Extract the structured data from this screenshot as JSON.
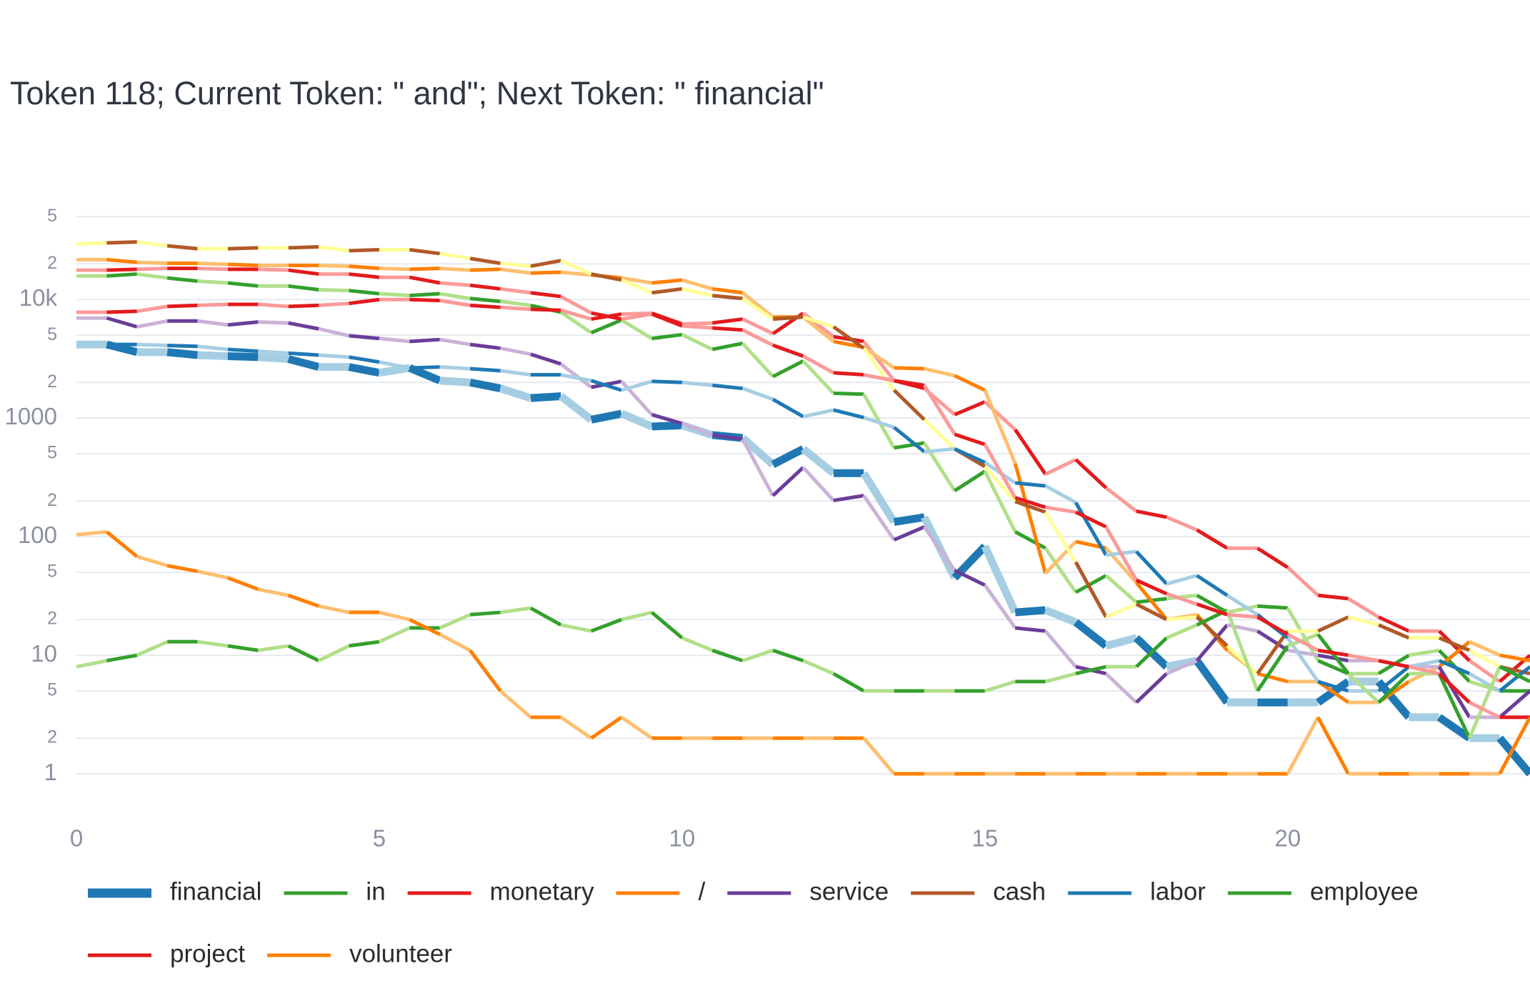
{
  "chart_data": {
    "type": "line",
    "title": "Token 118; Current Token: \" and\"; Next Token: \" financial\"",
    "log_y": true,
    "grid": true,
    "x": [
      0,
      0.5,
      1,
      1.5,
      2,
      2.5,
      3,
      3.5,
      4,
      4.5,
      5,
      5.5,
      6,
      6.5,
      7,
      7.5,
      8,
      8.5,
      9,
      9.5,
      10,
      10.5,
      11,
      11.5,
      12,
      12.5,
      13,
      13.5,
      14,
      14.5,
      15,
      15.5,
      16,
      16.5,
      17,
      17.5,
      18,
      18.5,
      19,
      19.5,
      20,
      20.5,
      21,
      21.5,
      22,
      22.5,
      23,
      23.5,
      24
    ],
    "xlim": [
      0,
      24
    ],
    "xticks": [
      0,
      5,
      10,
      15,
      20
    ],
    "ylim": [
      0.5,
      75000
    ],
    "yticks": [
      1,
      2,
      5,
      10,
      {
        "value": 20,
        "label": "2"
      },
      {
        "value": 50,
        "label": "5"
      },
      100,
      {
        "value": 200,
        "label": "2"
      },
      {
        "value": 500,
        "label": "5"
      },
      1000,
      {
        "value": 2000,
        "label": "2"
      },
      {
        "value": 5000,
        "label": "5"
      },
      {
        "value": 10000,
        "label": "10k"
      },
      {
        "value": 20000,
        "label": "2"
      },
      {
        "value": 50000,
        "label": "5"
      }
    ],
    "series": [
      {
        "name": "financial",
        "color": "#1f78b4",
        "alt_color": "#a6cee3",
        "values": [
          4180,
          4180,
          3600,
          3600,
          3400,
          3330,
          3270,
          3150,
          2700,
          2700,
          2410,
          2650,
          2070,
          2000,
          1780,
          1475,
          1530,
          970,
          1090,
          850,
          870,
          720,
          680,
          406,
          550,
          343,
          343,
          133,
          146,
          45,
          83,
          23,
          24,
          19,
          12,
          14,
          8,
          9,
          4,
          4,
          4,
          4,
          6,
          6,
          3,
          3,
          2,
          2,
          1
        ]
      },
      {
        "name": "in",
        "color": "#33a02c",
        "alt_color": "#b2df8a",
        "values": [
          15800,
          15800,
          16400,
          15200,
          14300,
          13800,
          13000,
          13000,
          12100,
          11900,
          11200,
          10800,
          11200,
          10200,
          9640,
          8930,
          7820,
          5250,
          6710,
          4690,
          5060,
          3800,
          4270,
          2240,
          3030,
          1620,
          1590,
          561,
          617,
          244,
          356,
          110,
          80,
          34,
          47,
          28,
          30,
          32,
          23,
          26,
          25,
          9,
          7,
          7,
          10,
          11,
          6,
          5,
          5
        ]
      },
      {
        "name": "monetary",
        "color": "#e31a1c",
        "alt_color": "#fb9a99",
        "values": [
          7820,
          7820,
          7960,
          8750,
          8930,
          9100,
          9100,
          8750,
          8930,
          9270,
          10000,
          10000,
          9810,
          8930,
          8590,
          8280,
          8120,
          6840,
          7540,
          7670,
          6220,
          6340,
          6840,
          5150,
          7670,
          4860,
          4430,
          2070,
          1780,
          1070,
          1370,
          800,
          336,
          447,
          258,
          164,
          146,
          114,
          80,
          80,
          55,
          32,
          30,
          21,
          16,
          16,
          9,
          6,
          10
        ]
      },
      {
        "name": "/",
        "color": "#ff7f00",
        "alt_color": "#fdbf6f",
        "values": [
          21700,
          21700,
          20600,
          20200,
          20200,
          19800,
          19400,
          19400,
          19400,
          19100,
          18300,
          18000,
          18300,
          17700,
          18000,
          16700,
          17000,
          16100,
          15200,
          13800,
          14600,
          12300,
          11400,
          7110,
          7110,
          4430,
          3950,
          2650,
          2610,
          2280,
          1720,
          414,
          49,
          91,
          80,
          41,
          20,
          22,
          11,
          7,
          6,
          6,
          4,
          4,
          6,
          8,
          13,
          10,
          9
        ]
      },
      {
        "name": "service",
        "color": "#6a3d9a",
        "alt_color": "#cab2d6",
        "values": [
          6980,
          6980,
          5890,
          6590,
          6590,
          6110,
          6470,
          6340,
          5660,
          4950,
          4690,
          4430,
          4600,
          4180,
          3880,
          3460,
          2860,
          1820,
          2040,
          1070,
          900,
          720,
          665,
          222,
          384,
          202,
          222,
          94,
          121,
          52,
          39,
          17,
          16,
          8,
          7,
          4,
          7,
          9,
          18,
          16,
          11,
          10,
          9,
          9,
          8,
          8,
          3,
          3,
          5
        ]
      },
      {
        "name": "cash",
        "color": "#b15928",
        "alt_color": "#ffff99",
        "values": [
          29400,
          30000,
          30600,
          28400,
          26800,
          26800,
          27300,
          27300,
          27800,
          25800,
          26300,
          26300,
          24400,
          22200,
          20200,
          19100,
          21300,
          16400,
          14600,
          11400,
          12300,
          10800,
          10200,
          6840,
          7110,
          5890,
          3880,
          1720,
          970,
          550,
          390,
          198,
          161,
          61,
          21,
          27,
          20,
          21,
          12,
          7,
          16,
          16,
          21,
          18,
          14,
          14,
          11,
          8,
          7
        ]
      },
      {
        "name": "labor",
        "color": "#1f78b4",
        "alt_color": "#a6cee3",
        "values": [
          4180,
          4180,
          4180,
          4100,
          4030,
          3800,
          3660,
          3530,
          3400,
          3270,
          2970,
          2650,
          2700,
          2610,
          2510,
          2320,
          2320,
          2070,
          1720,
          2040,
          2000,
          1890,
          1780,
          1440,
          1030,
          1170,
          1010,
          835,
          520,
          550,
          423,
          284,
          268,
          194,
          70,
          75,
          40,
          47,
          32,
          22,
          14,
          6,
          5,
          5,
          8,
          9,
          7,
          5,
          8
        ]
      },
      {
        "name": "employee",
        "color": "#33a02c",
        "alt_color": "#b2df8a",
        "values": [
          8,
          9,
          10,
          13,
          13,
          12,
          11,
          12,
          9,
          12,
          13,
          17,
          17,
          22,
          23,
          25,
          18,
          16,
          20,
          23,
          14,
          11,
          9,
          11,
          9,
          7,
          5,
          5,
          5,
          5,
          5,
          6,
          6,
          7,
          8,
          8,
          14,
          18,
          24,
          5,
          12,
          15,
          7,
          4,
          7,
          7,
          2,
          8,
          6
        ]
      },
      {
        "name": "project",
        "color": "#e31a1c",
        "alt_color": "#fb9a99",
        "values": [
          17700,
          17700,
          18000,
          18300,
          18300,
          18000,
          18000,
          17700,
          16400,
          16400,
          15400,
          15400,
          13800,
          13200,
          12300,
          11400,
          10600,
          7700,
          6840,
          7540,
          5990,
          5760,
          5530,
          4120,
          3330,
          2410,
          2320,
          2070,
          1890,
          730,
          600,
          213,
          177,
          161,
          121,
          43,
          33,
          27,
          22,
          21,
          15,
          11,
          10,
          9,
          8,
          7,
          4,
          3,
          3
        ]
      },
      {
        "name": "volunteer",
        "color": "#ff7f00",
        "alt_color": "#fdbf6f",
        "values": [
          104,
          110,
          68,
          57,
          51,
          45,
          36,
          32,
          26,
          23,
          23,
          20,
          15,
          11,
          5,
          3,
          3,
          2,
          3,
          2,
          2,
          2,
          2,
          2,
          2,
          2,
          2,
          1,
          1,
          1,
          1,
          1,
          1,
          1,
          1,
          1,
          1,
          1,
          1,
          1,
          1,
          3,
          1,
          1,
          1,
          1,
          1,
          1,
          3
        ]
      }
    ]
  }
}
